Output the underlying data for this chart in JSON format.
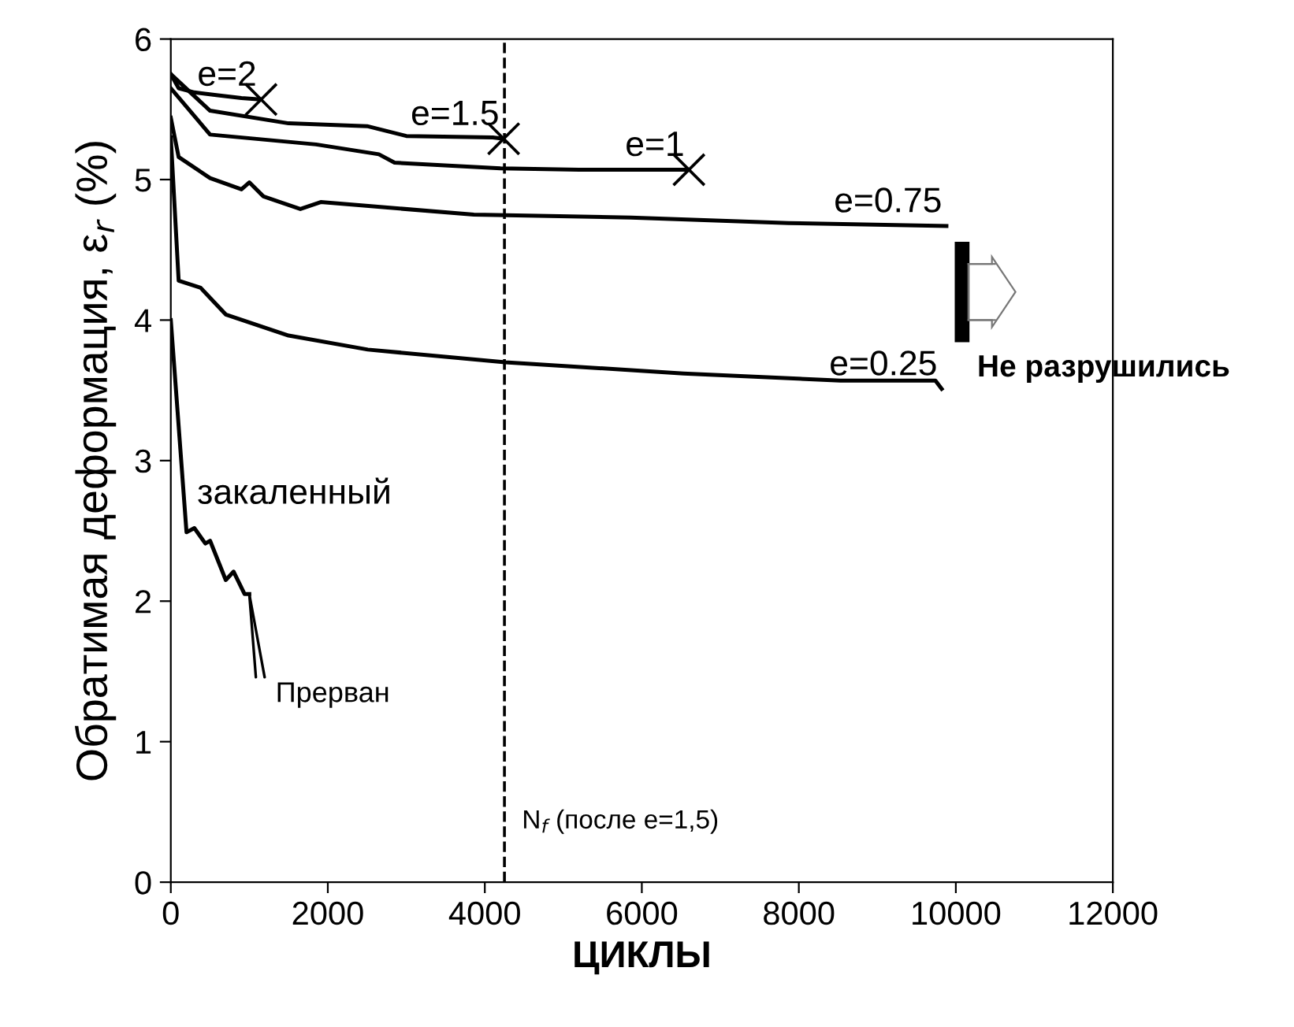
{
  "chart_data": {
    "type": "line",
    "xlabel": "ЦИКЛЫ",
    "ylabel": "Обратимая деформация, ε$_{r}$ (%)",
    "xlim": [
      0,
      12000
    ],
    "ylim": [
      0,
      6
    ],
    "xticks": [
      0,
      2000,
      4000,
      6000,
      8000,
      10000,
      12000
    ],
    "yticks": [
      0,
      1,
      2,
      3,
      4,
      5,
      6
    ],
    "grid": false,
    "legend": false,
    "line_style": "solid",
    "series": [
      {
        "name": "e=2",
        "color": "#000000",
        "marker": "none",
        "x": [
          0,
          100,
          300,
          600,
          900,
          1150
        ],
        "values": [
          5.75,
          5.65,
          5.62,
          5.6,
          5.58,
          5.57
        ]
      },
      {
        "name": "e=1.5",
        "color": "#000000",
        "marker": "none",
        "x": [
          0,
          500,
          1500,
          2500,
          3000,
          4100,
          4240
        ],
        "values": [
          5.75,
          5.49,
          5.4,
          5.38,
          5.31,
          5.3,
          5.29
        ]
      },
      {
        "name": "e=1",
        "color": "#000000",
        "marker": "none",
        "x": [
          0,
          500,
          1850,
          2650,
          2850,
          4200,
          5200,
          6600
        ],
        "values": [
          5.65,
          5.32,
          5.25,
          5.18,
          5.12,
          5.08,
          5.07,
          5.07
        ]
      },
      {
        "name": "e=0.75",
        "color": "#000000",
        "marker": "none",
        "x": [
          0,
          100,
          500,
          900,
          1000,
          1180,
          1650,
          1910,
          3860,
          5860,
          7870,
          9880
        ],
        "values": [
          5.44,
          5.16,
          5.01,
          4.93,
          4.98,
          4.88,
          4.79,
          4.84,
          4.75,
          4.73,
          4.69,
          4.67
        ]
      },
      {
        "name": "e=0.25",
        "color": "#000000",
        "marker": "none",
        "x": [
          0,
          100,
          380,
          700,
          1500,
          2510,
          4260,
          6530,
          8530,
          9740,
          9820
        ],
        "values": [
          5.3,
          4.28,
          4.23,
          4.04,
          3.89,
          3.79,
          3.7,
          3.62,
          3.57,
          3.57,
          3.51
        ]
      },
      {
        "name": "закаленный",
        "color": "#000000",
        "marker": "none",
        "x": [
          0,
          200,
          300,
          440,
          500,
          700,
          800,
          940,
          1000
        ],
        "values": [
          4.0,
          2.49,
          2.52,
          2.41,
          2.43,
          2.15,
          2.21,
          2.05,
          2.05
        ]
      },
      {
        "type": "scatter",
        "color": "#000000",
        "marker": "cross",
        "x": [
          1150,
          4240,
          6600
        ],
        "values": [
          5.57,
          5.29,
          5.07
        ]
      }
    ],
    "ref_lines": [
      {
        "axis": "x",
        "value": 4250,
        "line_style": "dashed",
        "color": "#000000"
      }
    ],
    "annotations": [
      {
        "text": "Прерван",
        "x": 1000,
        "y": 2.05
      },
      "Не разрушились",
      "N$_{f}$ (после e=1,5)"
    ]
  }
}
